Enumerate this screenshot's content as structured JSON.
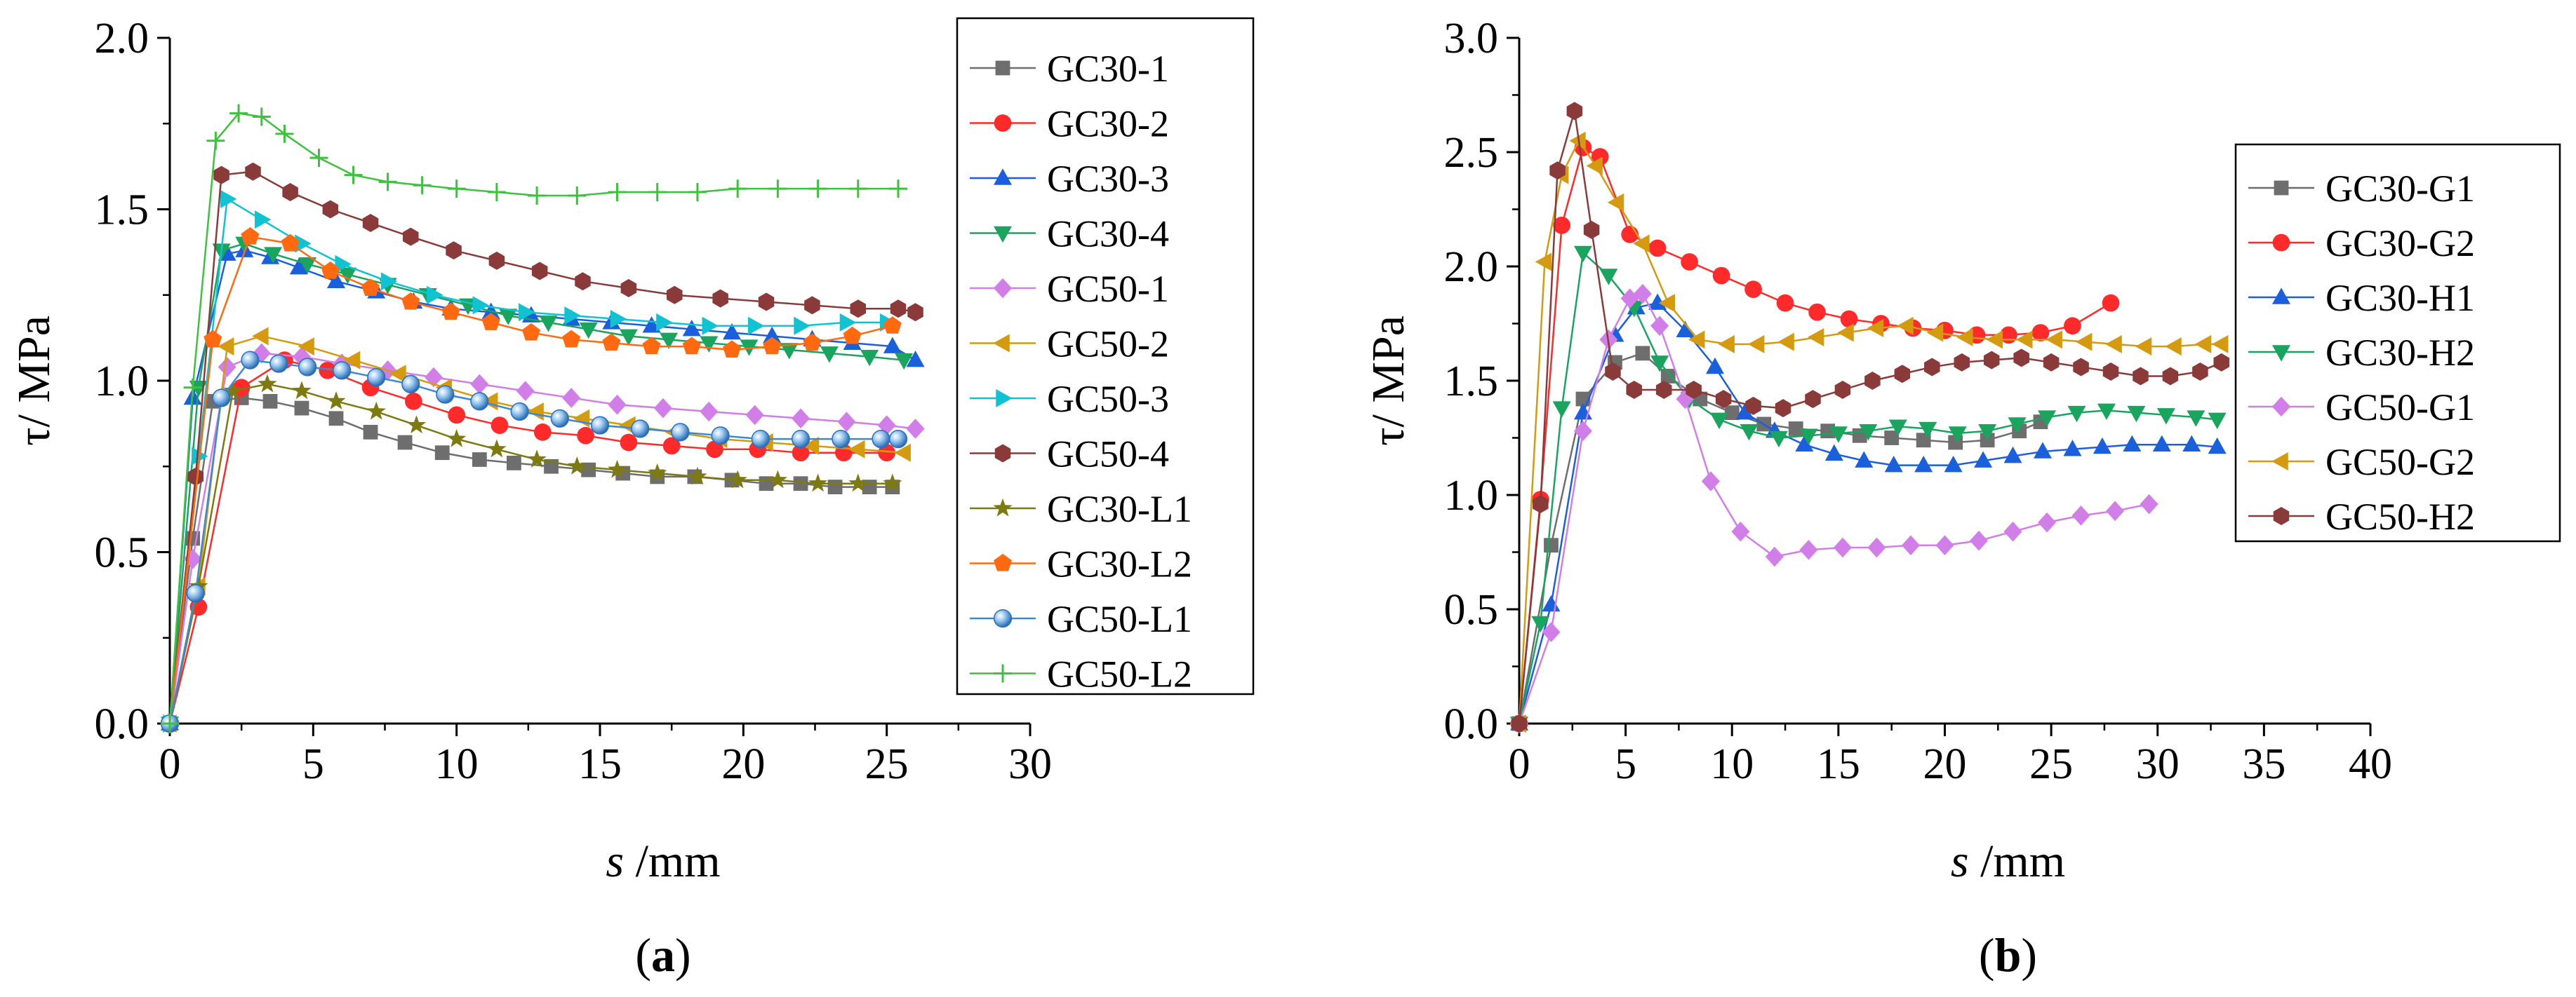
{
  "chart_data": [
    {
      "type": "line",
      "panel_label": "(a)",
      "xlabel_var": "s",
      "xlabel_unit": "/mm",
      "ylabel": "τ/ MPa",
      "xlim": [
        0,
        30
      ],
      "ylim": [
        0,
        2.0
      ],
      "xticks": [
        "0",
        "5",
        "10",
        "15",
        "20",
        "25",
        "30"
      ],
      "yticks": [
        "0.0",
        "0.5",
        "1.0",
        "1.5",
        "2.0"
      ],
      "grid": false,
      "legend_position": "right",
      "series": [
        {
          "name": "GC30-1",
          "color": "#6e6e6e",
          "marker": "square",
          "x": [
            0,
            0.8,
            1.5,
            2.5,
            3.5,
            4.6,
            5.8,
            7.0,
            8.2,
            9.5,
            10.8,
            12.0,
            13.3,
            14.6,
            15.8,
            17.0,
            18.3,
            19.6,
            20.8,
            22.0,
            23.2,
            24.4,
            25.2
          ],
          "y": [
            0,
            0.54,
            0.94,
            0.95,
            0.94,
            0.92,
            0.89,
            0.85,
            0.82,
            0.79,
            0.77,
            0.76,
            0.75,
            0.74,
            0.73,
            0.72,
            0.72,
            0.71,
            0.7,
            0.7,
            0.69,
            0.69,
            0.69
          ]
        },
        {
          "name": "GC30-2",
          "color": "#ff2a2a",
          "marker": "circle",
          "x": [
            0,
            1.0,
            2.5,
            4.0,
            5.5,
            7.0,
            8.5,
            10.0,
            11.5,
            13.0,
            14.5,
            16.0,
            17.5,
            19.0,
            20.5,
            22.0,
            23.5,
            25.0
          ],
          "y": [
            0,
            0.34,
            0.98,
            1.06,
            1.03,
            0.98,
            0.94,
            0.9,
            0.87,
            0.85,
            0.84,
            0.82,
            0.81,
            0.8,
            0.8,
            0.79,
            0.79,
            0.79
          ]
        },
        {
          "name": "GC30-3",
          "color": "#1a5fdc",
          "marker": "triangle-up",
          "x": [
            0,
            0.8,
            2.0,
            2.6,
            3.5,
            4.5,
            5.8,
            7.2,
            8.5,
            9.8,
            11.2,
            12.6,
            14.0,
            15.4,
            16.8,
            18.2,
            19.6,
            21.0,
            22.4,
            23.8,
            25.2,
            26.0
          ],
          "y": [
            0,
            0.95,
            1.37,
            1.38,
            1.36,
            1.33,
            1.29,
            1.26,
            1.23,
            1.21,
            1.2,
            1.19,
            1.18,
            1.17,
            1.16,
            1.15,
            1.14,
            1.13,
            1.12,
            1.11,
            1.1,
            1.06
          ]
        },
        {
          "name": "GC30-4",
          "color": "#1aa55f",
          "marker": "triangle-down",
          "x": [
            0,
            1.0,
            1.8,
            2.6,
            3.6,
            4.8,
            6.2,
            7.6,
            9.0,
            10.4,
            11.8,
            13.2,
            14.6,
            16.0,
            17.4,
            18.8,
            20.2,
            21.6,
            23.0,
            24.4,
            25.6
          ],
          "y": [
            0,
            0.98,
            1.38,
            1.4,
            1.37,
            1.34,
            1.31,
            1.28,
            1.25,
            1.22,
            1.19,
            1.17,
            1.15,
            1.13,
            1.12,
            1.11,
            1.1,
            1.09,
            1.08,
            1.07,
            1.06
          ]
        },
        {
          "name": "GC50-1",
          "color": "#d27ee8",
          "marker": "diamond",
          "x": [
            0,
            0.8,
            2.0,
            3.2,
            4.6,
            6.0,
            7.6,
            9.2,
            10.8,
            12.4,
            14.0,
            15.6,
            17.2,
            18.8,
            20.4,
            22.0,
            23.6,
            25.0,
            26.0
          ],
          "y": [
            0,
            0.48,
            1.04,
            1.08,
            1.07,
            1.05,
            1.03,
            1.01,
            0.99,
            0.97,
            0.95,
            0.93,
            0.92,
            0.91,
            0.9,
            0.89,
            0.88,
            0.87,
            0.86
          ]
        },
        {
          "name": "GC50-2",
          "color": "#d49a10",
          "marker": "triangle-left",
          "x": [
            0,
            1.0,
            2.0,
            3.2,
            4.8,
            6.4,
            8.0,
            9.6,
            11.2,
            12.8,
            14.4,
            16.0,
            17.6,
            19.2,
            20.8,
            22.4,
            24.0,
            25.6
          ],
          "y": [
            0,
            0.4,
            1.1,
            1.13,
            1.1,
            1.06,
            1.02,
            0.98,
            0.94,
            0.91,
            0.89,
            0.87,
            0.85,
            0.83,
            0.82,
            0.81,
            0.8,
            0.79
          ]
        },
        {
          "name": "GC50-3",
          "color": "#10c2d2",
          "marker": "triangle-right",
          "x": [
            0,
            1.0,
            2.0,
            3.2,
            4.6,
            6.0,
            7.6,
            9.2,
            10.8,
            12.4,
            14.0,
            15.6,
            17.2,
            18.8,
            20.4,
            22.0,
            23.6,
            25.0
          ],
          "y": [
            0,
            0.78,
            1.53,
            1.47,
            1.4,
            1.34,
            1.29,
            1.25,
            1.22,
            1.2,
            1.19,
            1.18,
            1.17,
            1.16,
            1.16,
            1.16,
            1.17,
            1.17
          ]
        },
        {
          "name": "GC50-4",
          "color": "#8b3a3a",
          "marker": "hexagon",
          "x": [
            0,
            0.9,
            1.8,
            2.9,
            4.2,
            5.6,
            7.0,
            8.4,
            9.9,
            11.4,
            12.9,
            14.4,
            16.0,
            17.6,
            19.2,
            20.8,
            22.4,
            24.0,
            25.4,
            26.0
          ],
          "y": [
            0,
            0.72,
            1.6,
            1.61,
            1.55,
            1.5,
            1.46,
            1.42,
            1.38,
            1.35,
            1.32,
            1.29,
            1.27,
            1.25,
            1.24,
            1.23,
            1.22,
            1.21,
            1.21,
            1.2
          ]
        },
        {
          "name": "GC30-L1",
          "color": "#7e7a12",
          "marker": "star",
          "x": [
            0,
            1.0,
            2.2,
            3.4,
            4.6,
            5.8,
            7.2,
            8.6,
            10.0,
            11.4,
            12.8,
            14.2,
            15.6,
            17.0,
            18.4,
            19.8,
            21.2,
            22.6,
            24.0,
            25.2
          ],
          "y": [
            0,
            0.4,
            0.97,
            0.99,
            0.97,
            0.94,
            0.91,
            0.87,
            0.83,
            0.8,
            0.77,
            0.75,
            0.74,
            0.73,
            0.72,
            0.71,
            0.71,
            0.7,
            0.7,
            0.7
          ]
        },
        {
          "name": "GC30-L2",
          "color": "#ff6a10",
          "marker": "pentagon",
          "x": [
            0,
            1.5,
            2.8,
            4.2,
            5.6,
            7.0,
            8.4,
            9.8,
            11.2,
            12.6,
            14.0,
            15.4,
            16.8,
            18.2,
            19.6,
            21.0,
            22.4,
            23.8,
            25.2
          ],
          "y": [
            0,
            1.12,
            1.42,
            1.4,
            1.32,
            1.27,
            1.23,
            1.2,
            1.17,
            1.14,
            1.12,
            1.11,
            1.1,
            1.1,
            1.09,
            1.1,
            1.11,
            1.13,
            1.16
          ]
        },
        {
          "name": "GC50-L1",
          "color": "#3a8ad6",
          "marker": "sphere",
          "x": [
            0,
            0.9,
            1.8,
            2.8,
            3.8,
            4.8,
            6.0,
            7.2,
            8.4,
            9.6,
            10.8,
            12.2,
            13.6,
            15.0,
            16.4,
            17.8,
            19.2,
            20.6,
            22.0,
            23.4,
            24.8,
            25.4
          ],
          "y": [
            0,
            0.38,
            0.95,
            1.06,
            1.05,
            1.04,
            1.03,
            1.01,
            0.99,
            0.96,
            0.94,
            0.91,
            0.89,
            0.87,
            0.86,
            0.85,
            0.84,
            0.83,
            0.83,
            0.83,
            0.83,
            0.83
          ]
        },
        {
          "name": "GC50-L2",
          "color": "#3cc23c",
          "marker": "plus",
          "x": [
            0,
            0.8,
            1.6,
            2.4,
            3.2,
            4.0,
            5.2,
            6.4,
            7.6,
            8.8,
            10.0,
            11.4,
            12.8,
            14.2,
            15.6,
            17.0,
            18.4,
            19.8,
            21.2,
            22.6,
            24.0,
            25.4
          ],
          "y": [
            0,
            0.98,
            1.7,
            1.78,
            1.77,
            1.72,
            1.65,
            1.6,
            1.58,
            1.57,
            1.56,
            1.55,
            1.54,
            1.54,
            1.55,
            1.55,
            1.55,
            1.56,
            1.56,
            1.56,
            1.56,
            1.56
          ]
        }
      ]
    },
    {
      "type": "line",
      "panel_label": "(b)",
      "xlabel_var": "s",
      "xlabel_unit": "/mm",
      "ylabel": "τ/ MPa",
      "xlim": [
        0,
        40
      ],
      "ylim": [
        0,
        3.0
      ],
      "xticks": [
        "0",
        "5",
        "10",
        "15",
        "20",
        "25",
        "30",
        "35",
        "40"
      ],
      "yticks": [
        "0.0",
        "0.5",
        "1.0",
        "1.5",
        "2.0",
        "2.5",
        "3.0"
      ],
      "grid": false,
      "legend_position": "right",
      "series": [
        {
          "name": "GC30-G1",
          "color": "#6e6e6e",
          "marker": "square",
          "x": [
            0,
            1.5,
            3.0,
            4.5,
            5.8,
            7.0,
            8.5,
            10.0,
            11.5,
            13.0,
            14.5,
            16.0,
            17.5,
            19.0,
            20.5,
            22.0,
            23.5,
            24.5
          ],
          "y": [
            0,
            0.78,
            1.42,
            1.58,
            1.62,
            1.52,
            1.42,
            1.36,
            1.31,
            1.29,
            1.28,
            1.26,
            1.25,
            1.24,
            1.23,
            1.24,
            1.28,
            1.32
          ]
        },
        {
          "name": "GC30-G2",
          "color": "#ff2a2a",
          "marker": "circle",
          "x": [
            0,
            1.0,
            2.0,
            3.0,
            3.8,
            5.2,
            6.5,
            8.0,
            9.5,
            11.0,
            12.5,
            14.0,
            15.5,
            17.0,
            18.5,
            20.0,
            21.5,
            23.0,
            24.5,
            26.0,
            27.8
          ],
          "y": [
            0,
            0.98,
            2.18,
            2.52,
            2.48,
            2.14,
            2.08,
            2.02,
            1.96,
            1.9,
            1.84,
            1.8,
            1.77,
            1.75,
            1.73,
            1.72,
            1.7,
            1.7,
            1.71,
            1.74,
            1.84
          ]
        },
        {
          "name": "GC30-H1",
          "color": "#1a5fdc",
          "marker": "triangle-up",
          "x": [
            0,
            1.5,
            3.0,
            4.5,
            5.5,
            6.5,
            7.8,
            9.2,
            10.6,
            12.0,
            13.4,
            14.8,
            16.2,
            17.6,
            19.0,
            20.4,
            21.8,
            23.2,
            24.6,
            26.0,
            27.4,
            28.8,
            30.2,
            31.6,
            32.8
          ],
          "y": [
            0,
            0.52,
            1.36,
            1.7,
            1.82,
            1.84,
            1.72,
            1.56,
            1.36,
            1.28,
            1.22,
            1.18,
            1.15,
            1.13,
            1.13,
            1.13,
            1.15,
            1.17,
            1.19,
            1.2,
            1.21,
            1.22,
            1.22,
            1.22,
            1.21
          ]
        },
        {
          "name": "GC30-H2",
          "color": "#1aa55f",
          "marker": "triangle-down",
          "x": [
            0,
            1.0,
            2.0,
            3.0,
            4.2,
            5.4,
            6.6,
            8.0,
            9.4,
            10.8,
            12.2,
            13.6,
            15.0,
            16.4,
            17.8,
            19.2,
            20.6,
            22.0,
            23.4,
            24.8,
            26.2,
            27.6,
            29.0,
            30.4,
            31.8,
            32.8
          ],
          "y": [
            0,
            0.44,
            1.38,
            2.06,
            1.96,
            1.82,
            1.58,
            1.42,
            1.33,
            1.28,
            1.25,
            1.26,
            1.27,
            1.28,
            1.3,
            1.29,
            1.27,
            1.28,
            1.31,
            1.34,
            1.36,
            1.37,
            1.36,
            1.35,
            1.34,
            1.33
          ]
        },
        {
          "name": "GC50-G1",
          "color": "#d27ee8",
          "marker": "diamond",
          "x": [
            0,
            1.5,
            3.0,
            4.2,
            5.2,
            5.8,
            6.6,
            7.8,
            9.0,
            10.4,
            12.0,
            13.6,
            15.2,
            16.8,
            18.4,
            20.0,
            21.6,
            23.2,
            24.8,
            26.4,
            28.0,
            29.6
          ],
          "y": [
            0,
            0.4,
            1.28,
            1.68,
            1.86,
            1.88,
            1.74,
            1.42,
            1.06,
            0.84,
            0.73,
            0.76,
            0.77,
            0.77,
            0.78,
            0.78,
            0.8,
            0.84,
            0.88,
            0.91,
            0.93,
            0.96
          ]
        },
        {
          "name": "GC50-G2",
          "color": "#d49a10",
          "marker": "triangle-left",
          "x": [
            0,
            1.2,
            2.0,
            2.8,
            3.6,
            4.6,
            5.8,
            7.0,
            8.4,
            9.8,
            11.2,
            12.6,
            14.0,
            15.4,
            16.8,
            18.2,
            19.6,
            21.0,
            22.4,
            23.8,
            25.2,
            26.6,
            28.0,
            29.4,
            30.8,
            32.2,
            33.0
          ],
          "y": [
            0,
            2.02,
            2.4,
            2.55,
            2.44,
            2.28,
            2.1,
            1.84,
            1.68,
            1.66,
            1.66,
            1.67,
            1.69,
            1.71,
            1.73,
            1.74,
            1.71,
            1.69,
            1.68,
            1.68,
            1.68,
            1.67,
            1.66,
            1.65,
            1.65,
            1.66,
            1.66
          ]
        },
        {
          "name": "GC50-H2",
          "color": "#8b3a3a",
          "marker": "hexagon",
          "x": [
            0,
            1.0,
            1.8,
            2.6,
            3.4,
            4.4,
            5.4,
            6.8,
            8.2,
            9.6,
            11.0,
            12.4,
            13.8,
            15.2,
            16.6,
            18.0,
            19.4,
            20.8,
            22.2,
            23.6,
            25.0,
            26.4,
            27.8,
            29.2,
            30.6,
            32.0,
            33.0
          ],
          "y": [
            0,
            0.96,
            2.42,
            2.68,
            2.16,
            1.54,
            1.46,
            1.46,
            1.46,
            1.42,
            1.39,
            1.38,
            1.42,
            1.46,
            1.5,
            1.53,
            1.56,
            1.58,
            1.59,
            1.6,
            1.58,
            1.56,
            1.54,
            1.52,
            1.52,
            1.54,
            1.58
          ]
        }
      ]
    }
  ]
}
